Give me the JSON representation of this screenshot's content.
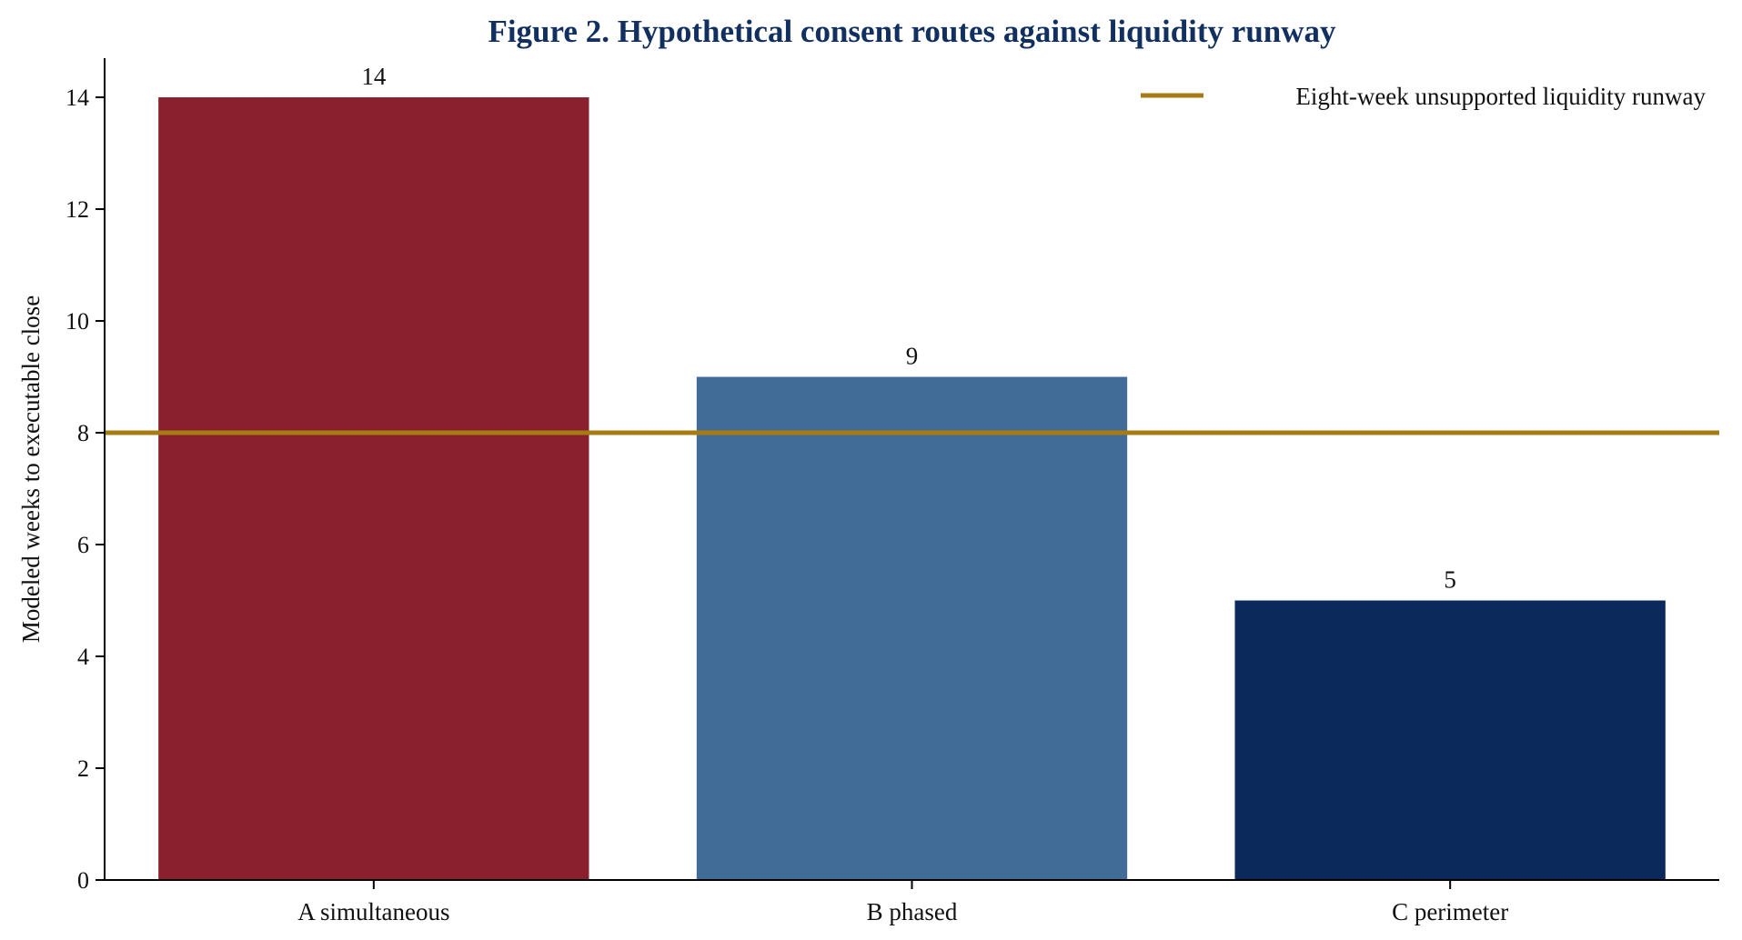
{
  "chart_data": {
    "type": "bar",
    "title": "Figure 2. Hypothetical consent routes against liquidity runway",
    "xlabel": "",
    "ylabel": "Modeled weeks to executable close",
    "categories": [
      "A simultaneous",
      "B phased",
      "C perimeter"
    ],
    "values": [
      14,
      9,
      5
    ],
    "data_labels": [
      "14",
      "9",
      "5"
    ],
    "bar_colors": [
      "#8A1F2D",
      "#426C98",
      "#0B2A5B"
    ],
    "ylim": [
      0,
      14.7
    ],
    "yticks": [
      0,
      2,
      4,
      6,
      8,
      10,
      12,
      14
    ],
    "reference_line": {
      "value": 8,
      "label": "Eight-week unsupported liquidity runway",
      "color": "#A67C12"
    },
    "legend_position": "top-right",
    "grid": false
  },
  "colors": {
    "title": "#12305F",
    "axis": "#000000",
    "text": "#111111"
  }
}
